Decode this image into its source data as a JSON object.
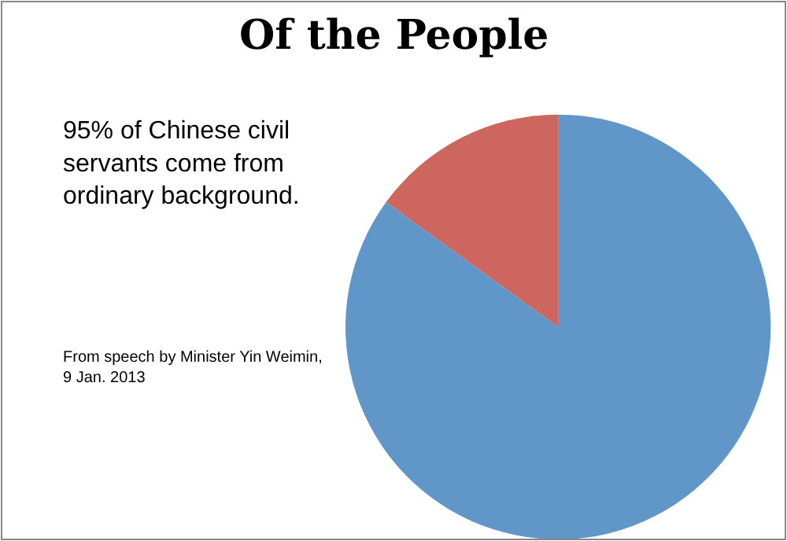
{
  "chart_data": {
    "type": "pie",
    "title": "Of the People",
    "categories": [
      null,
      null
    ],
    "values": [
      85,
      15
    ],
    "colors": [
      "#6096c8",
      "#cc665e"
    ],
    "annotations": [
      "95% of Chinese civil servants come from ordinary background.",
      "From speech by Minister Yin Weimin, 9 Jan. 2013"
    ],
    "legend": false
  }
}
